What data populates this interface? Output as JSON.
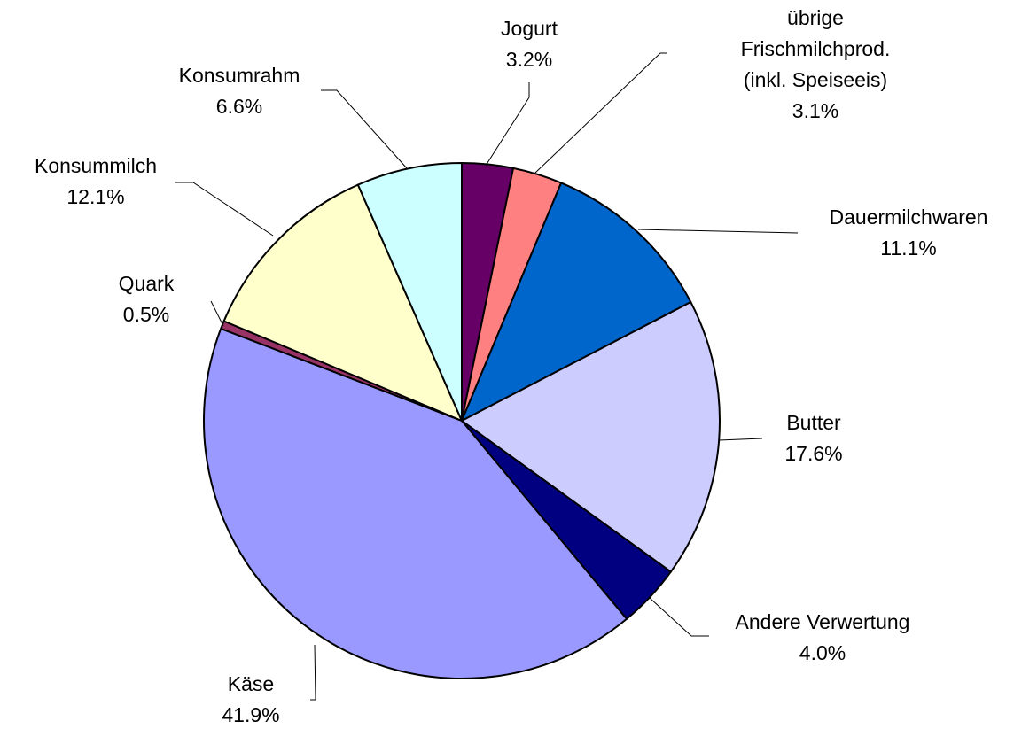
{
  "chart_data": {
    "type": "pie",
    "categories": [
      "Jogurt",
      "übrige Frischmilchprod.\n(inkl. Speiseeis)",
      "Dauermilchwaren",
      "Butter",
      "Andere Verwertung",
      "Käse",
      "Quark",
      "Konsummilch",
      "Konsumrahm"
    ],
    "values": [
      3.2,
      3.1,
      11.1,
      17.6,
      4.0,
      41.9,
      0.5,
      12.1,
      6.6
    ],
    "value_labels": [
      "3.2%",
      "3.1%",
      "11.1%",
      "17.6%",
      "4.0%",
      "41.9%",
      "0.5%",
      "12.1%",
      "6.6%"
    ],
    "colors": [
      "#660066",
      "#ff8080",
      "#0066cc",
      "#ccccff",
      "#000080",
      "#9999ff",
      "#993366",
      "#ffffcc",
      "#ccffff"
    ]
  }
}
